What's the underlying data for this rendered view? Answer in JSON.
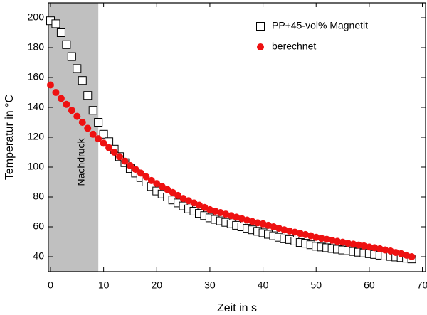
{
  "chart_data": {
    "type": "scatter",
    "x_label": "Zeit in s",
    "y_label": "Temperatur in °C",
    "xlim": [
      -0.4,
      70.6
    ],
    "ylim": [
      30,
      210
    ],
    "xticks": [
      0,
      10,
      20,
      30,
      40,
      50,
      60,
      70
    ],
    "yticks": [
      40,
      60,
      80,
      100,
      120,
      140,
      160,
      180,
      200
    ],
    "legend": "upper right",
    "shaded_region": {
      "x": [
        0,
        9
      ],
      "color": "#c0c0c0",
      "label": "Nachdruck"
    },
    "x": [
      0,
      1,
      2,
      3,
      4,
      5,
      6,
      7,
      8,
      9,
      10,
      11,
      12,
      13,
      14,
      15,
      16,
      17,
      18,
      19,
      20,
      21,
      22,
      23,
      24,
      25,
      26,
      27,
      28,
      29,
      30,
      31,
      32,
      33,
      34,
      35,
      36,
      37,
      38,
      39,
      40,
      41,
      42,
      43,
      44,
      45,
      46,
      47,
      48,
      49,
      50,
      51,
      52,
      53,
      54,
      55,
      56,
      57,
      58,
      59,
      60,
      61,
      62,
      63,
      64,
      65,
      66,
      67,
      68
    ],
    "series": [
      {
        "name": "PP+45-vol% Magnetit",
        "marker": "square",
        "color": "#000000",
        "values": [
          198,
          196,
          190,
          182,
          174,
          166,
          158,
          148,
          138,
          130,
          122,
          117,
          112,
          107,
          103,
          99,
          96,
          93,
          90,
          87,
          84,
          82,
          80,
          78,
          76,
          74,
          72,
          70.5,
          69,
          67.5,
          66,
          65,
          64,
          63,
          62,
          61,
          60,
          59,
          58,
          57,
          56,
          55,
          54,
          53,
          52,
          51.5,
          50.5,
          49.5,
          49,
          48,
          47,
          46.5,
          46,
          45.5,
          45,
          44.5,
          44,
          43.5,
          43,
          42.5,
          42,
          41.5,
          41,
          40.5,
          40.2,
          39.8,
          39.4,
          39,
          38.5
        ]
      },
      {
        "name": "berechnet",
        "marker": "circle",
        "color": "#ee1111",
        "values": [
          155,
          150,
          146,
          142,
          138,
          134,
          130,
          126,
          122,
          119,
          116,
          113,
          110,
          107,
          104,
          101,
          98.5,
          96,
          93.5,
          91,
          89,
          87,
          85,
          83,
          81,
          79,
          77.5,
          76,
          74.5,
          73,
          71.5,
          70.5,
          69.5,
          68.5,
          67.5,
          66.5,
          65.5,
          64.5,
          63.5,
          62.7,
          62,
          61,
          60,
          59,
          58,
          57.2,
          56.4,
          55.6,
          54.8,
          54,
          53,
          52.3,
          51.6,
          51,
          50.3,
          49.7,
          49,
          48.4,
          47.8,
          47.2,
          46.5,
          46,
          45.3,
          44.5,
          43.8,
          42.8,
          42,
          41,
          40
        ]
      }
    ]
  }
}
